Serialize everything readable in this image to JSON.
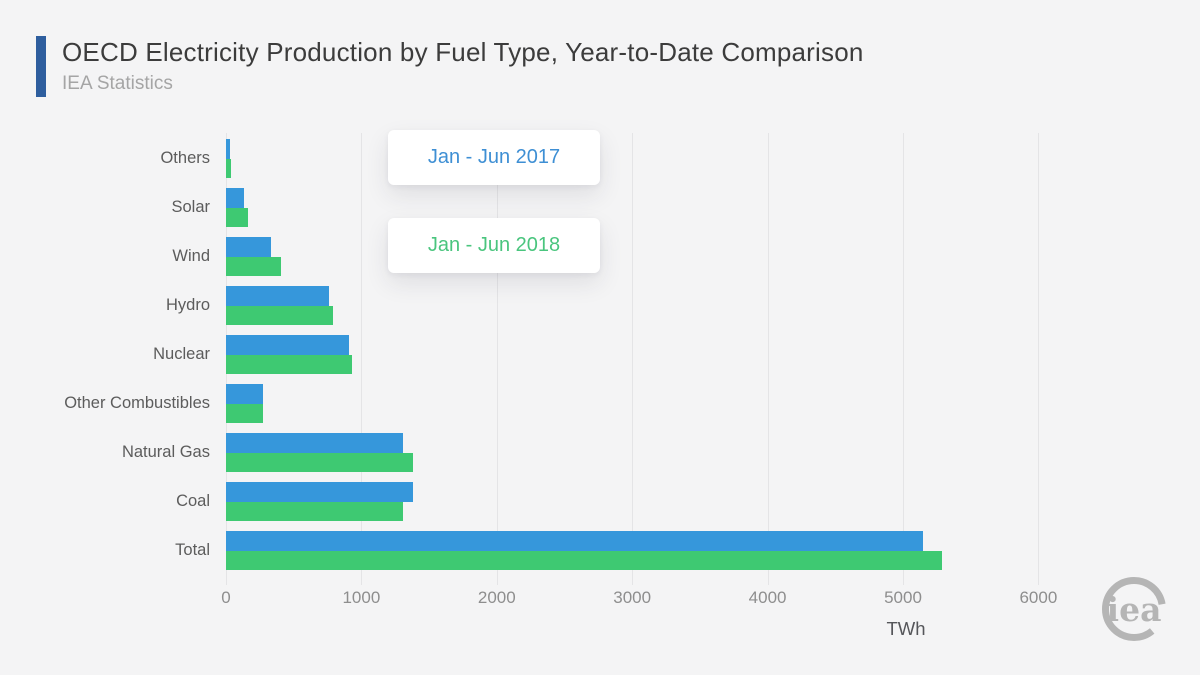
{
  "header": {
    "title": "OECD Electricity Production by Fuel Type, Year-to-Date Comparison",
    "subtitle": "IEA Statistics",
    "accent_color": "#2e5e9e"
  },
  "legend": [
    {
      "label": "Jan - Jun 2017",
      "color": "#3e8fd4"
    },
    {
      "label": "Jan - Jun 2018",
      "color": "#4ac57e"
    }
  ],
  "chart_data": {
    "type": "bar",
    "orientation": "horizontal",
    "title": "OECD Electricity Production by Fuel Type, Year-to-Date Comparison",
    "categories": [
      "Others",
      "Solar",
      "Wind",
      "Hydro",
      "Nuclear",
      "Other Combustibles",
      "Natural Gas",
      "Coal",
      "Total"
    ],
    "series": [
      {
        "name": "Jan - Jun 2017",
        "color": "#3697db",
        "values": [
          30,
          130,
          330,
          760,
          910,
          270,
          1310,
          1380,
          5150
        ]
      },
      {
        "name": "Jan - Jun 2018",
        "color": "#3ec972",
        "values": [
          40,
          160,
          405,
          790,
          930,
          275,
          1380,
          1310,
          5290
        ]
      }
    ],
    "xlabel": "TWh",
    "xticks": [
      0,
      1000,
      2000,
      3000,
      4000,
      5000,
      6000
    ],
    "xlim": [
      0,
      6330
    ],
    "grid": "vertical",
    "legend_position": "inside-top-left"
  },
  "footer": {
    "logo_text": "iea"
  }
}
